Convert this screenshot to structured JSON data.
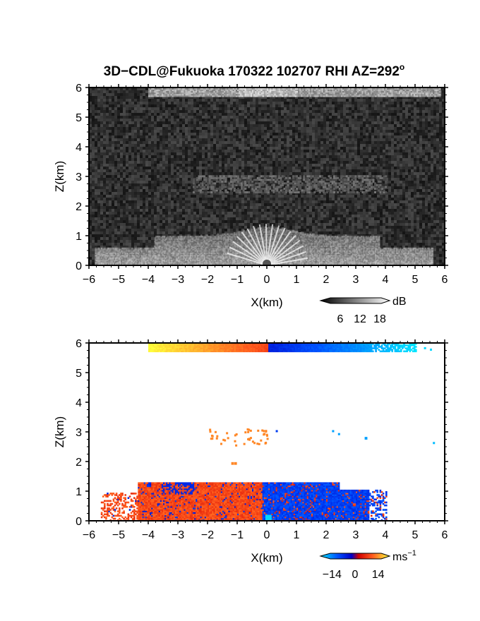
{
  "title": "3D−CDL@Fukuoka 170322 102707 RHI AZ=292",
  "title_sup": "o",
  "chart_data": [
    {
      "type": "heatmap",
      "name": "reflectivity",
      "xlabel": "X(km)",
      "ylabel": "Z(km)",
      "xlim": [
        -6,
        6
      ],
      "ylim": [
        0,
        6
      ],
      "xticks": [
        "−6",
        "−5",
        "−4",
        "−3",
        "−2",
        "−1",
        "0",
        "1",
        "2",
        "3",
        "4",
        "5",
        "6"
      ],
      "yticks": [
        "0",
        "1",
        "2",
        "3",
        "4",
        "5",
        "6"
      ],
      "colorbar": {
        "unit": "dB",
        "ticks": [
          "6",
          "12",
          "18"
        ],
        "range": [
          0,
          21
        ]
      },
      "cmap": "grayscale",
      "background": "#1c1c1c"
    },
    {
      "type": "heatmap",
      "name": "doppler-velocity",
      "xlabel": "X(km)",
      "ylabel": "Z(km)",
      "xlim": [
        -6,
        6
      ],
      "ylim": [
        0,
        6
      ],
      "xticks": [
        "−6",
        "−5",
        "−4",
        "−3",
        "−2",
        "−1",
        "0",
        "1",
        "2",
        "3",
        "4",
        "5",
        "6"
      ],
      "yticks": [
        "0",
        "1",
        "2",
        "3",
        "4",
        "5",
        "6"
      ],
      "colorbar": {
        "unit": "ms",
        "unit_sup": "−1",
        "ticks": [
          "−14",
          "0",
          "14"
        ],
        "range": [
          -21,
          21
        ]
      },
      "cmap": "cyan-blue-red-yellow",
      "background": "#ffffff"
    }
  ]
}
